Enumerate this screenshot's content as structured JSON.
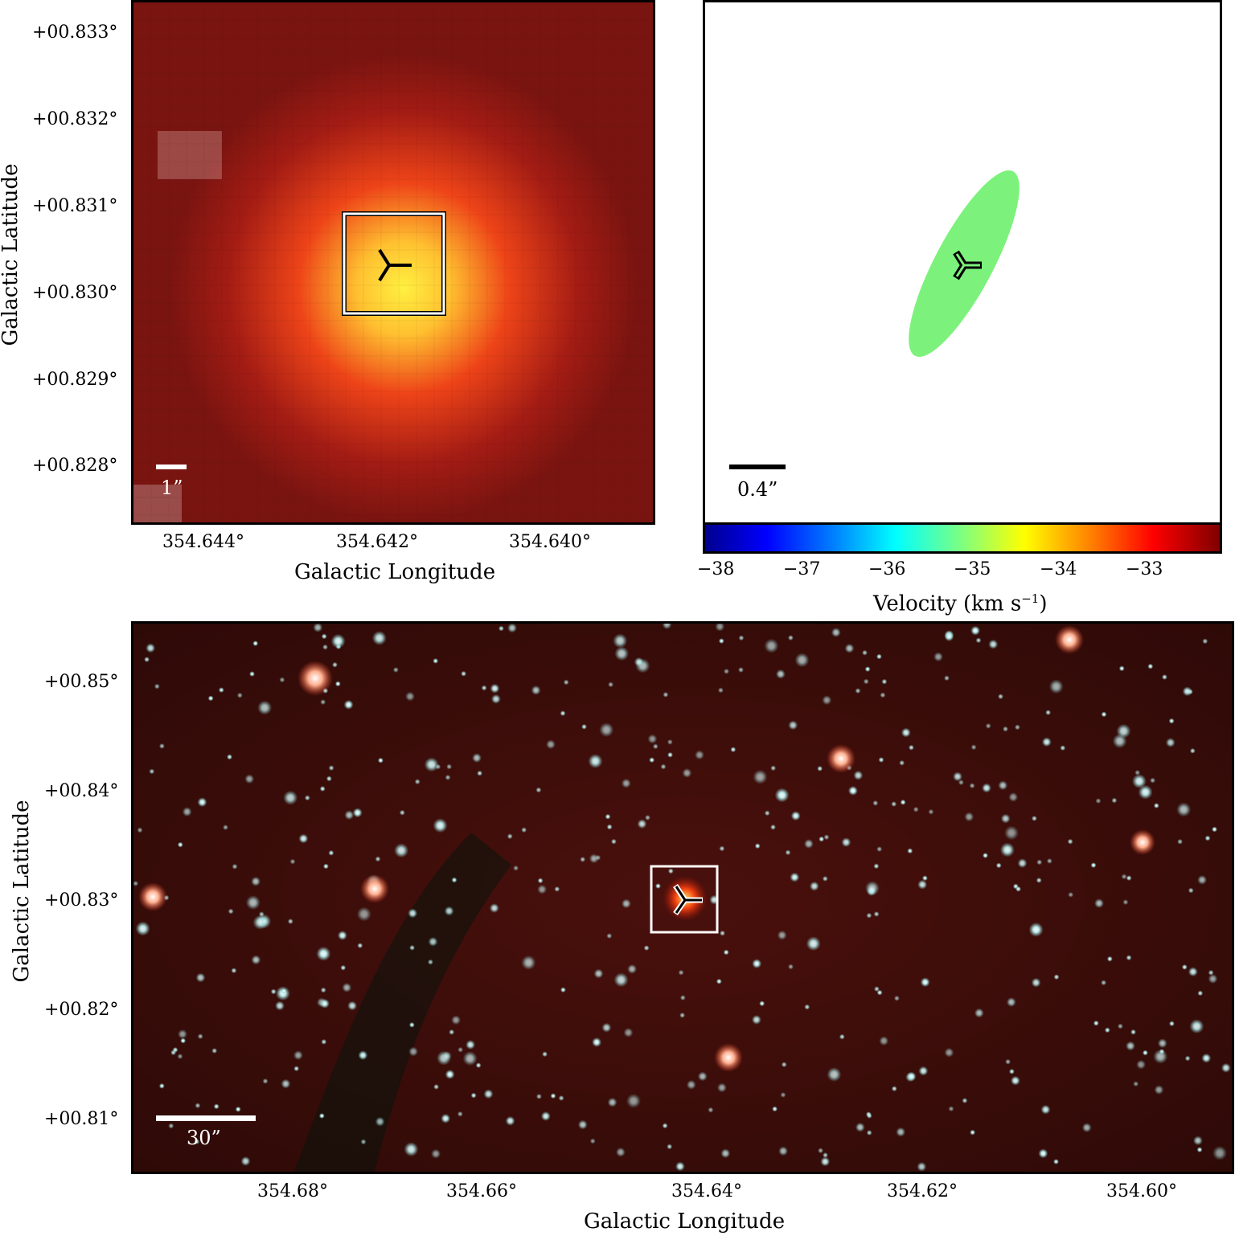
{
  "top_left": {
    "y_ticks": [
      "+00.833°",
      "+00.832°",
      "+00.831°",
      "+00.830°",
      "+00.829°",
      "+00.828°"
    ],
    "x_ticks": [
      "354.644°",
      "354.642°",
      "354.640°"
    ],
    "xlabel": "Galactic Longitude",
    "ylabel": "Galactic Latitude",
    "scalebar_label": "1”"
  },
  "top_right": {
    "scalebar_label": "0.4”",
    "colorbar_ticks": [
      "−38",
      "−37",
      "−36",
      "−35",
      "−34",
      "−33"
    ],
    "colorbar_label_main": "Velocity (km s",
    "colorbar_label_sup": "−1",
    "colorbar_label_end": ")",
    "ellipse_color": "#7cf27c"
  },
  "bottom": {
    "y_ticks": [
      "+00.85°",
      "+00.84°",
      "+00.83°",
      "+00.82°",
      "+00.81°"
    ],
    "x_ticks": [
      "354.68°",
      "354.66°",
      "354.64°",
      "354.62°",
      "354.60°"
    ],
    "xlabel": "Galactic Longitude",
    "ylabel": "Galactic Latitude",
    "scalebar_label": "30”"
  },
  "colors": {
    "heat_core": "#ffee44",
    "heat_mid": "#f05020",
    "heat_bg": "#8a1a14",
    "sky_bg": "#3a0c08",
    "star": "#cfeef0"
  }
}
